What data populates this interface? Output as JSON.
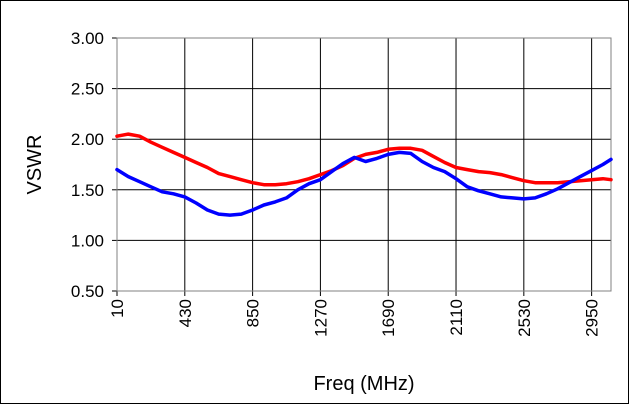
{
  "chart_data": {
    "type": "line",
    "title": "",
    "xlabel": "Freq (MHz)",
    "ylabel": "VSWR",
    "xlim": [
      10,
      3070
    ],
    "ylim": [
      0.5,
      3.0
    ],
    "x_ticks": [
      10,
      430,
      850,
      1270,
      1690,
      2110,
      2530,
      2950
    ],
    "x_tick_labels": [
      "10",
      "430",
      "850",
      "1270",
      "1690",
      "2110",
      "2530",
      "2950"
    ],
    "y_ticks": [
      0.5,
      1.0,
      1.5,
      2.0,
      2.5,
      3.0
    ],
    "y_tick_labels": [
      "0.50",
      "1.00",
      "1.50",
      "2.00",
      "2.50",
      "3.00"
    ],
    "grid": true,
    "legend": "none",
    "series": [
      {
        "color": "#ff0000",
        "x": [
          10,
          80,
          150,
          220,
          290,
          360,
          430,
          500,
          570,
          640,
          710,
          780,
          850,
          920,
          990,
          1060,
          1130,
          1200,
          1270,
          1340,
          1410,
          1480,
          1550,
          1620,
          1690,
          1760,
          1830,
          1900,
          1970,
          2040,
          2110,
          2180,
          2250,
          2320,
          2390,
          2460,
          2530,
          2600,
          2670,
          2740,
          2810,
          2880,
          2950,
          3020,
          3070
        ],
        "values": [
          2.03,
          2.05,
          2.03,
          1.97,
          1.92,
          1.87,
          1.82,
          1.77,
          1.72,
          1.66,
          1.63,
          1.6,
          1.57,
          1.55,
          1.55,
          1.56,
          1.58,
          1.61,
          1.65,
          1.69,
          1.74,
          1.81,
          1.85,
          1.87,
          1.9,
          1.91,
          1.91,
          1.89,
          1.83,
          1.77,
          1.72,
          1.7,
          1.68,
          1.67,
          1.65,
          1.62,
          1.59,
          1.57,
          1.57,
          1.57,
          1.58,
          1.59,
          1.6,
          1.61,
          1.6
        ]
      },
      {
        "color": "#0000ff",
        "x": [
          10,
          80,
          150,
          220,
          290,
          360,
          430,
          500,
          570,
          640,
          710,
          780,
          850,
          920,
          990,
          1060,
          1130,
          1200,
          1270,
          1340,
          1410,
          1480,
          1550,
          1620,
          1690,
          1760,
          1830,
          1900,
          1970,
          2040,
          2110,
          2180,
          2250,
          2320,
          2390,
          2460,
          2530,
          2600,
          2670,
          2740,
          2810,
          2880,
          2950,
          3020,
          3070
        ],
        "values": [
          1.7,
          1.63,
          1.58,
          1.53,
          1.48,
          1.46,
          1.43,
          1.37,
          1.3,
          1.26,
          1.25,
          1.26,
          1.3,
          1.35,
          1.38,
          1.42,
          1.5,
          1.56,
          1.6,
          1.68,
          1.76,
          1.82,
          1.78,
          1.81,
          1.85,
          1.87,
          1.86,
          1.78,
          1.72,
          1.68,
          1.61,
          1.53,
          1.49,
          1.46,
          1.43,
          1.42,
          1.41,
          1.42,
          1.46,
          1.51,
          1.57,
          1.63,
          1.69,
          1.75,
          1.8
        ]
      }
    ]
  }
}
